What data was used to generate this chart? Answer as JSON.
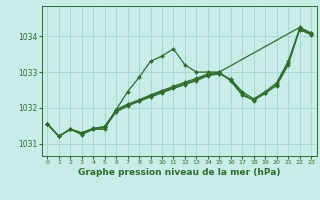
{
  "title": "Graphe pression niveau de la mer (hPa)",
  "bg_color": "#c8ece8",
  "grid_color": "#a8d8d0",
  "line_color": "#2d6e2d",
  "markersize": 2.0,
  "linewidth": 0.9,
  "xlim": [
    -0.5,
    23.5
  ],
  "ylim": [
    1030.65,
    1034.85
  ],
  "yticks": [
    1031,
    1032,
    1033,
    1034
  ],
  "xticks": [
    0,
    1,
    2,
    3,
    4,
    5,
    6,
    7,
    8,
    9,
    10,
    11,
    12,
    13,
    14,
    15,
    16,
    17,
    18,
    19,
    20,
    21,
    22,
    23
  ],
  "lineA_x": [
    0,
    1,
    2,
    3,
    4,
    5,
    6,
    7,
    8,
    9,
    10,
    11,
    12,
    13,
    14,
    15,
    22,
    23
  ],
  "lineA_y": [
    1031.55,
    1031.2,
    1031.4,
    1031.25,
    1031.4,
    1031.4,
    1031.95,
    1032.45,
    1032.85,
    1033.3,
    1033.45,
    1033.65,
    1033.2,
    1033.0,
    1033.0,
    1033.0,
    1034.25,
    1034.1
  ],
  "lineB_x": [
    0,
    1,
    2,
    3,
    4,
    5,
    6,
    7,
    8,
    9,
    10,
    11,
    12,
    13,
    14,
    15,
    16,
    17,
    18,
    19,
    20,
    21,
    22,
    23
  ],
  "lineB_y": [
    1031.55,
    1031.2,
    1031.4,
    1031.3,
    1031.42,
    1031.45,
    1031.88,
    1032.05,
    1032.18,
    1032.3,
    1032.42,
    1032.54,
    1032.65,
    1032.76,
    1032.9,
    1032.95,
    1032.8,
    1032.45,
    1032.25,
    1032.45,
    1032.7,
    1033.3,
    1034.2,
    1034.05
  ],
  "lineC_x": [
    0,
    1,
    2,
    3,
    4,
    5,
    6,
    7,
    8,
    9,
    10,
    11,
    12,
    13,
    14,
    15,
    16,
    17,
    18,
    19,
    20,
    21,
    22,
    23
  ],
  "lineC_y": [
    1031.55,
    1031.2,
    1031.4,
    1031.28,
    1031.4,
    1031.45,
    1031.95,
    1032.1,
    1032.22,
    1032.36,
    1032.48,
    1032.6,
    1032.72,
    1032.82,
    1032.95,
    1033.0,
    1032.75,
    1032.35,
    1032.22,
    1032.4,
    1032.65,
    1033.25,
    1034.22,
    1034.08
  ],
  "lineD_x": [
    0,
    1,
    2,
    3,
    4,
    5,
    6,
    7,
    8,
    9,
    10,
    11,
    12,
    13,
    14,
    15,
    16,
    17,
    18,
    19,
    20,
    21,
    22,
    23
  ],
  "lineD_y": [
    1031.55,
    1031.2,
    1031.4,
    1031.3,
    1031.42,
    1031.48,
    1031.92,
    1032.08,
    1032.2,
    1032.33,
    1032.45,
    1032.57,
    1032.68,
    1032.79,
    1032.92,
    1032.97,
    1032.78,
    1032.4,
    1032.2,
    1032.42,
    1032.62,
    1033.2,
    1034.18,
    1034.06
  ]
}
